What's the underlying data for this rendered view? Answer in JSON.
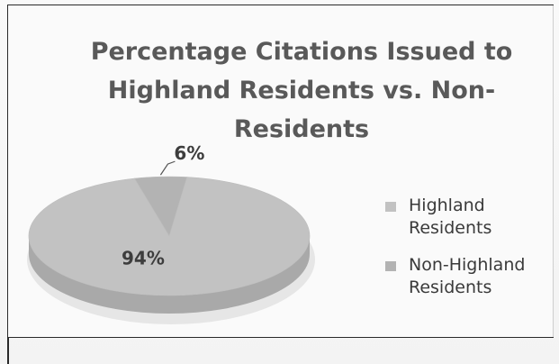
{
  "chart_data": {
    "type": "pie",
    "title": "Percentage Citations Issued to Highland Residents vs. Non-Residents",
    "title_lines": [
      "Percentage Citations Issued to",
      "Highland Residents vs. Non-",
      "Residents"
    ],
    "slices": [
      {
        "label": "Highland Residents",
        "label_lines": [
          "Highland",
          "Residents"
        ],
        "value": 94,
        "value_label": "94%",
        "color": "#c2c2c2"
      },
      {
        "label": "Non-Highland Residents",
        "label_lines": [
          "Non-Highland",
          "Residents"
        ],
        "value": 6,
        "value_label": "6%",
        "color": "#b3b3b3"
      }
    ],
    "legend_position": "right",
    "style": "3d"
  }
}
